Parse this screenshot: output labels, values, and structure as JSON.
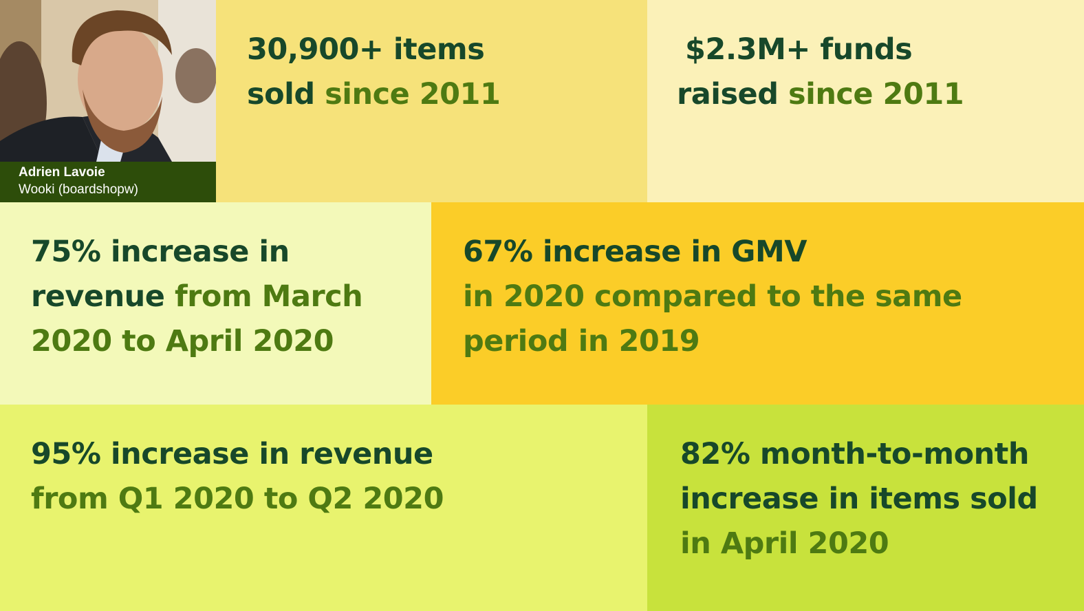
{
  "profile": {
    "name": "Adrien Lavoie",
    "company": "Wooki (boardshopw)"
  },
  "stats": {
    "items": {
      "line1": "30,900+ items",
      "line2_strong": "sold",
      "line2_rest": "since 2011"
    },
    "funds": {
      "line1": "$2.3M+ funds",
      "line2_strong": "raised",
      "line2_rest": "since 2011"
    },
    "revenue_75": {
      "line1": "75% increase in",
      "line2_strong": "revenue",
      "line2_rest": "from March",
      "line3": "2020 to April 2020"
    },
    "gmv_67": {
      "line1": "67% increase in GMV",
      "line2": "in 2020 compared to the same",
      "line3": "period in 2019"
    },
    "revenue_95": {
      "line1": "95% increase in revenue",
      "line2": "from Q1 2020 to Q2 2020"
    },
    "items_82": {
      "line1": "82% month-to-month",
      "line2": "increase in items sold",
      "line3": "in April 2020"
    }
  },
  "colors": {
    "text_dark": "#17482a",
    "text_accent": "#4e7a12",
    "caption_bg": "#2d4d0a"
  }
}
